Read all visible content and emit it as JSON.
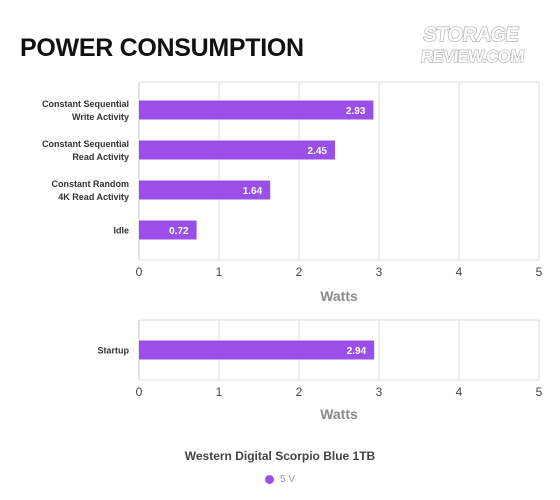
{
  "title": "POWER CONSUMPTION",
  "logo": {
    "line1": "STORAGE",
    "line2": "REVIEW.COM"
  },
  "chart_data": [
    {
      "type": "bar",
      "orientation": "horizontal",
      "categories": [
        [
          "Constant Sequential",
          "Write Activity"
        ],
        [
          "Constant Sequential",
          "Read Activity"
        ],
        [
          "Constant Random",
          "4K Read Activity"
        ],
        [
          "Idle"
        ]
      ],
      "series": [
        {
          "name": "5 V",
          "values": [
            2.93,
            2.45,
            1.64,
            0.72
          ]
        }
      ],
      "xlabel": "Watts",
      "xlim": [
        0,
        5
      ],
      "xticks": [
        "0",
        "1",
        "2",
        "3",
        "4",
        "5"
      ],
      "grid": true
    },
    {
      "type": "bar",
      "orientation": "horizontal",
      "categories": [
        [
          "Startup"
        ]
      ],
      "series": [
        {
          "name": "5 V",
          "values": [
            2.94
          ]
        }
      ],
      "xlabel": "Watts",
      "xlim": [
        0,
        5
      ],
      "xticks": [
        "0",
        "1",
        "2",
        "3",
        "4",
        "5"
      ],
      "grid": true
    }
  ],
  "legend": {
    "title": "Western Digital Scorpio Blue 1TB",
    "placement": "bottom-center",
    "items": [
      {
        "label": "5 V",
        "color": "#9b4ee8"
      }
    ]
  },
  "colors": {
    "bar": "#9b4ee8",
    "grid": "#dddddd",
    "axis_text": "#555555",
    "label_text": "#333333"
  }
}
